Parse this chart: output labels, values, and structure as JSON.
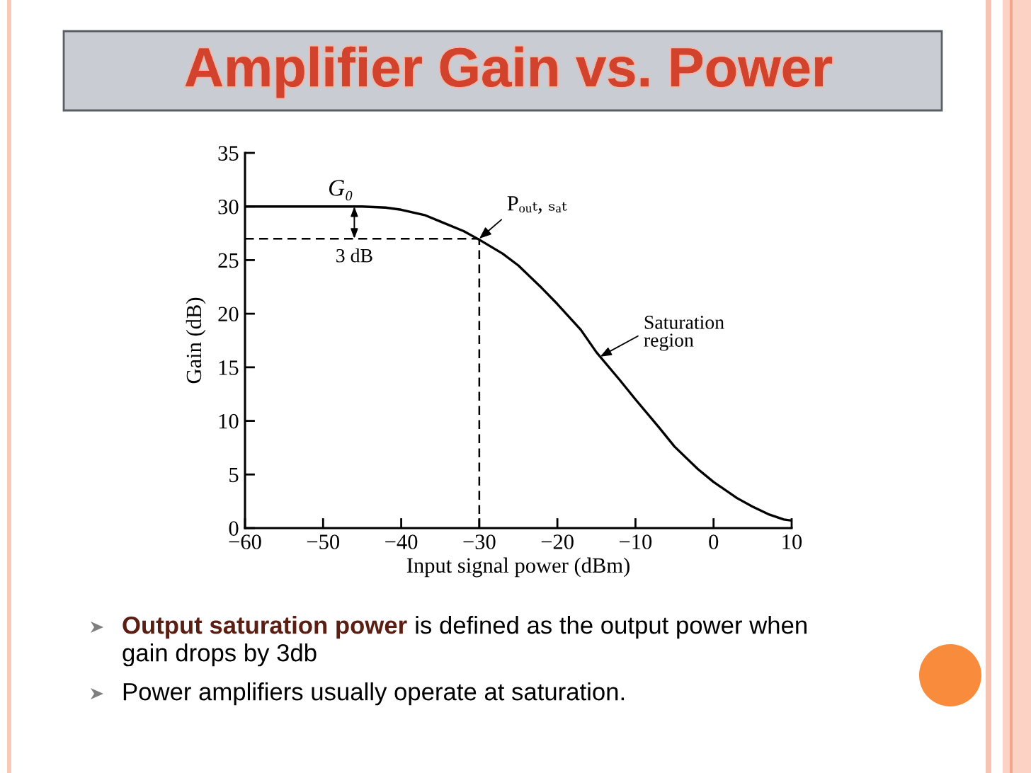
{
  "chart_data": {
    "type": "line",
    "title": "Amplifier Gain vs. Power",
    "xlabel": "Input signal power (dBm)",
    "ylabel": "Gain (dB)",
    "x": [
      -60,
      -55,
      -50,
      -45,
      -42,
      -40,
      -37,
      -35,
      -32,
      -30,
      -27,
      -25,
      -22,
      -20,
      -17,
      -15,
      -12,
      -10,
      -7,
      -5,
      -2,
      0,
      3,
      5,
      7,
      9,
      10
    ],
    "values": [
      30,
      30,
      30,
      30,
      29.9,
      29.7,
      29.2,
      28.6,
      27.7,
      26.9,
      25.6,
      24.5,
      22.4,
      20.9,
      18.5,
      16.4,
      13.8,
      12.0,
      9.4,
      7.6,
      5.5,
      4.3,
      2.8,
      2.0,
      1.3,
      0.8,
      0.7
    ],
    "color": "#000000",
    "xlim": [
      -60,
      10
    ],
    "ylim": [
      0,
      35
    ],
    "xticks": [
      {
        "value": -60,
        "label": "−60"
      },
      {
        "value": -50,
        "label": "−50"
      },
      {
        "value": -40,
        "label": "−40"
      },
      {
        "value": -30,
        "label": "−30"
      },
      {
        "value": -20,
        "label": "−20"
      },
      {
        "value": -10,
        "label": "−10"
      },
      0,
      10
    ],
    "yticks": [
      0,
      5,
      10,
      15,
      20,
      25,
      30,
      35
    ],
    "ref_lines": [
      {
        "axis": "y",
        "value": 27,
        "line_style": "dashed"
      },
      {
        "axis": "x",
        "value": -30,
        "line_style": "dashed"
      }
    ],
    "annotations": [
      {
        "text": "G₀",
        "x": -46,
        "y": 30
      },
      {
        "text": "Pₒᵤₜ, ₛₐₜ",
        "x": -30,
        "y": 27
      },
      {
        "text": "3 dB",
        "x": -46,
        "y": 27
      },
      {
        "text": "Saturation\nregion",
        "x": -14.5,
        "y": 16
      },
      "Output saturation power",
      "is defined as the output power when",
      "gain drops by 3db",
      "Power amplifiers usually operate at saturation."
    ]
  }
}
